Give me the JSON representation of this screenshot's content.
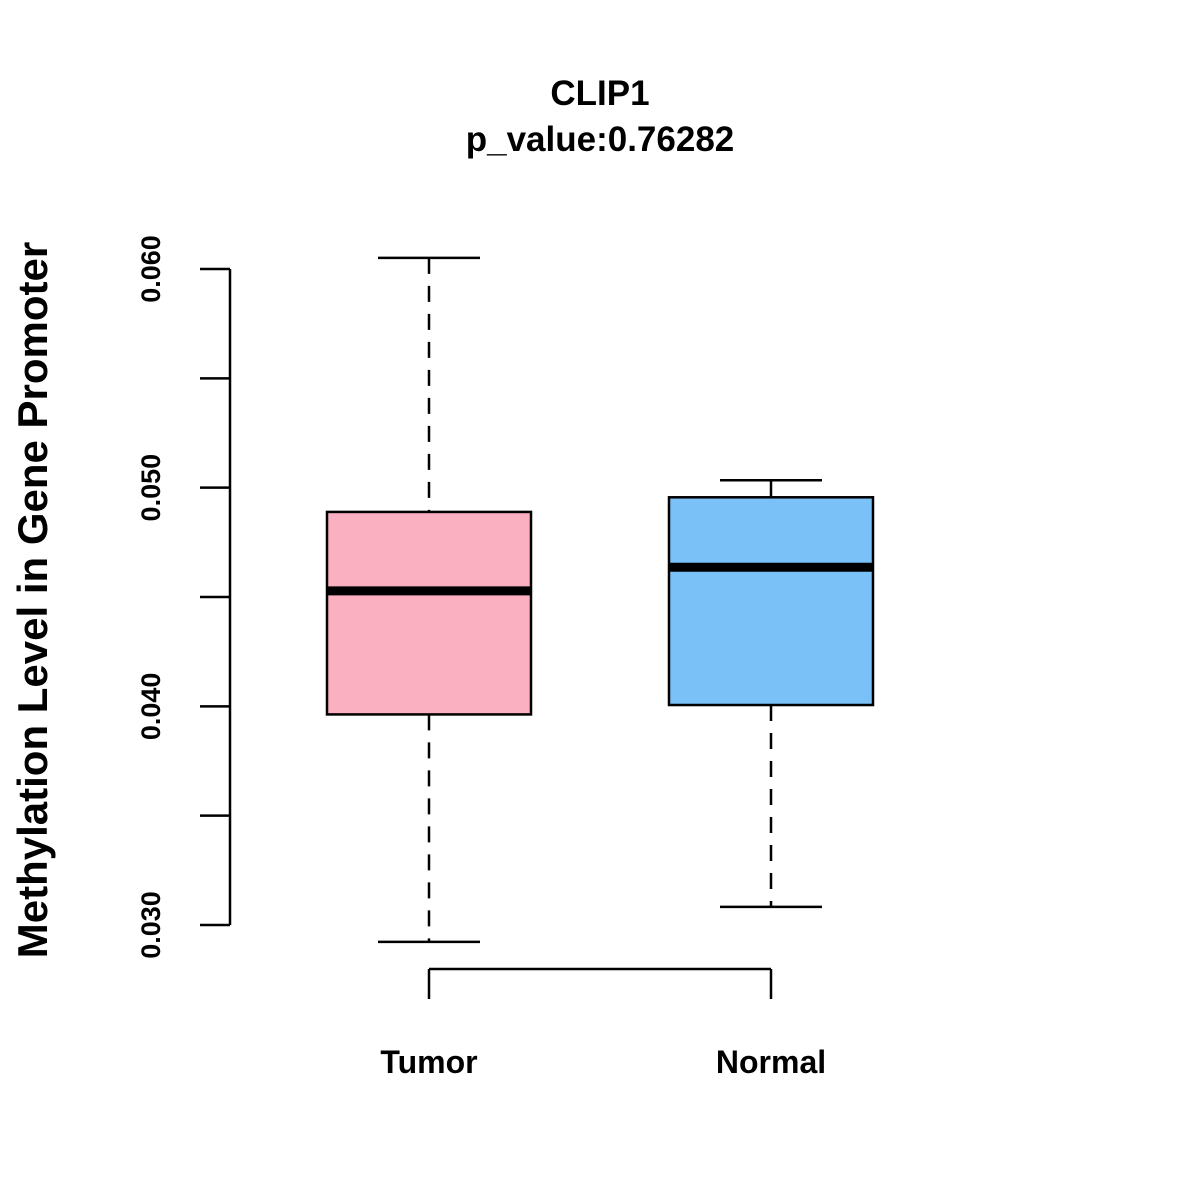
{
  "chart_data": {
    "type": "boxplot",
    "title": "CLIP1",
    "subtitle": "p_value:0.76282",
    "xlabel": "",
    "ylabel": "Methylation Level in Gene Promoter",
    "ylim": [
      0.0292,
      0.0605
    ],
    "yticks": [
      0.03,
      0.035,
      0.04,
      0.045,
      0.05,
      0.055,
      0.06
    ],
    "ytick_labels": [
      "0.030",
      "",
      "0.040",
      "",
      "0.050",
      "",
      "0.060"
    ],
    "categories": [
      "Tumor",
      "Normal"
    ],
    "colors": [
      "#fbb0c2",
      "#79c1f7"
    ],
    "boxes": [
      {
        "name": "Tumor",
        "min": 0.02923,
        "q1": 0.03963,
        "median": 0.04528,
        "q3": 0.04889,
        "max": 0.06051
      },
      {
        "name": "Normal",
        "min": 0.03083,
        "q1": 0.04006,
        "median": 0.04636,
        "q3": 0.04956,
        "max": 0.05034
      }
    ],
    "grid": false,
    "legend": "none"
  }
}
